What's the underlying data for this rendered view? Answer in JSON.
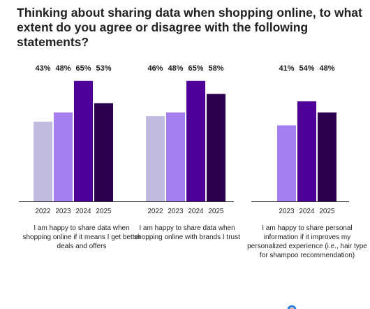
{
  "title": "Thinking about sharing data when shopping online, to what extent do you agree or disagree with the following statements?",
  "colors": {
    "2022": "#c2bbe0",
    "2023": "#a57ef2",
    "2024": "#4e0099",
    "2025": "#2c004d",
    "axis": "#333333",
    "logo_blue": "#2a7de1",
    "logo_orange": "#f05a28"
  },
  "chart_data": {
    "type": "bar",
    "title": "Thinking about sharing data when shopping online, to what extent do you agree or disagree with the following statements?",
    "ylim": [
      0,
      80
    ],
    "grid": false,
    "legend": "none",
    "series_colors": {
      "2022": "#c2bbe0",
      "2023": "#a57ef2",
      "2024": "#4e0099",
      "2025": "#2c004d"
    },
    "groups": [
      {
        "label": "I am happy to share data when shopping online if it means I get better deals and offers",
        "bars": [
          {
            "year": "2022",
            "value": 43,
            "label": "43%"
          },
          {
            "year": "2023",
            "value": 48,
            "label": "48%"
          },
          {
            "year": "2024",
            "value": 65,
            "label": "65%"
          },
          {
            "year": "2025",
            "value": 53,
            "label": "53%"
          }
        ]
      },
      {
        "label": "I am happy to share data when shopping online with brands I trust",
        "bars": [
          {
            "year": "2022",
            "value": 46,
            "label": "46%"
          },
          {
            "year": "2023",
            "value": 48,
            "label": "48%"
          },
          {
            "year": "2024",
            "value": 65,
            "label": "65%"
          },
          {
            "year": "2025",
            "value": 58,
            "label": "58%"
          }
        ]
      },
      {
        "label": "I am happy to share personal information if it improves my personalized experience (i.e., hair type for shampoo recommendation)",
        "bars": [
          {
            "year": "2023",
            "value": 41,
            "label": "41%"
          },
          {
            "year": "2024",
            "value": 54,
            "label": "54%"
          },
          {
            "year": "2025",
            "value": 48,
            "label": "48%"
          }
        ]
      }
    ]
  }
}
